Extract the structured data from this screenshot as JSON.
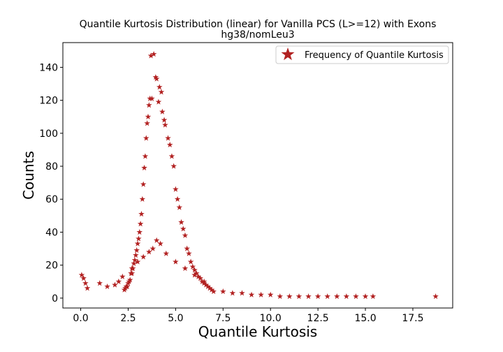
{
  "chart_data": {
    "type": "scatter",
    "title": "Quantile Kurtosis Distribution (linear) for Vanilla PCS (L>=12) with Exons",
    "subtitle": "hg38/nomLeu3",
    "xlabel": "Quantile Kurtosis",
    "ylabel": "Counts",
    "xlim": [
      -0.94,
      19.6
    ],
    "ylim": [
      -6,
      155
    ],
    "xticks": [
      0.0,
      2.5,
      5.0,
      7.5,
      10.0,
      12.5,
      15.0,
      17.5
    ],
    "xtick_labels": [
      "0.0",
      "2.5",
      "5.0",
      "7.5",
      "10.0",
      "12.5",
      "15.0",
      "17.5"
    ],
    "yticks": [
      0,
      20,
      40,
      60,
      80,
      100,
      120,
      140
    ],
    "ytick_labels": [
      "0",
      "20",
      "40",
      "60",
      "80",
      "100",
      "120",
      "140"
    ],
    "grid": false,
    "legend_position": "top-right",
    "marker": "star",
    "series": [
      {
        "name": "Frequency of Quantile Kurtosis",
        "color": "#b22222",
        "x": [
          3.7,
          3.85,
          3.95,
          4.0,
          4.15,
          4.25,
          3.65,
          3.75,
          3.6,
          4.1,
          4.3,
          3.55,
          4.4,
          3.5,
          4.45,
          3.45,
          4.6,
          3.4,
          4.7,
          3.35,
          4.8,
          3.3,
          4.9,
          3.25,
          3.2,
          5.0,
          3.15,
          5.1,
          3.1,
          5.2,
          3.05,
          5.3,
          5.4,
          3.0,
          2.95,
          5.5,
          5.6,
          2.9,
          5.7,
          2.85,
          5.8,
          2.8,
          5.9,
          2.75,
          6.0,
          6.1,
          2.7,
          6.2,
          2.65,
          6.3,
          2.6,
          6.4,
          2.55,
          6.5,
          2.5,
          6.6,
          2.45,
          6.7,
          2.4,
          6.8,
          2.35,
          6.9,
          2.3,
          7.0,
          0.05,
          0.15,
          0.25,
          0.35,
          1.0,
          1.4,
          1.8,
          2.0,
          2.2,
          4.0,
          4.2,
          3.8,
          4.5,
          3.6,
          5.0,
          3.3,
          5.5,
          3.0,
          6.0,
          2.7,
          6.5,
          7.5,
          8.0,
          8.5,
          9.0,
          9.5,
          10.0,
          10.5,
          11.0,
          11.5,
          12.0,
          12.5,
          13.0,
          13.5,
          14.0,
          14.5,
          15.0,
          15.4,
          18.7
        ],
        "y": [
          147,
          148,
          134,
          133,
          128,
          125,
          121,
          121,
          117,
          119,
          113,
          110,
          108,
          106,
          105,
          97,
          97,
          86,
          93,
          79,
          86,
          69,
          80,
          60,
          51,
          66,
          45,
          60,
          40,
          55,
          36,
          46,
          42,
          33,
          29,
          38,
          30,
          26,
          27,
          23,
          22,
          21,
          19,
          18,
          17,
          15,
          18,
          13,
          15,
          12,
          11,
          10,
          10,
          9,
          9,
          8,
          7,
          7,
          7,
          6,
          6,
          5,
          5,
          4,
          14,
          12,
          9,
          6,
          9,
          7,
          8,
          10,
          13,
          35,
          33,
          30,
          27,
          28,
          22,
          25,
          18,
          22,
          14,
          15,
          10,
          4,
          3,
          3,
          2,
          2,
          2,
          1,
          1,
          1,
          1,
          1,
          1,
          1,
          1,
          1,
          1,
          1,
          1
        ]
      }
    ]
  }
}
